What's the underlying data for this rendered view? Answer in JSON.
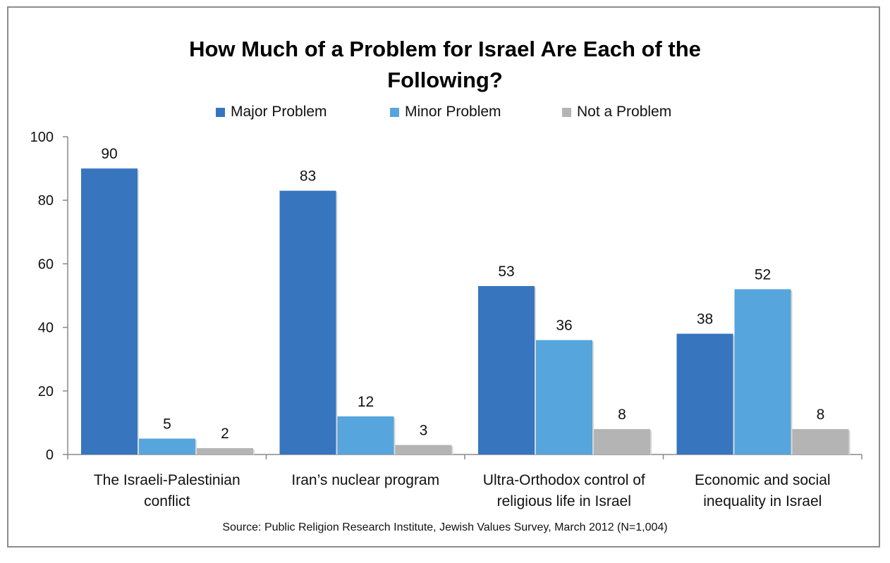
{
  "chart_data": {
    "type": "bar",
    "title_lines": [
      "How Much of a Problem for Israel Are Each of the",
      "Following?"
    ],
    "categories": [
      [
        "The Israeli-Palestinian",
        "conflict"
      ],
      [
        "Iran’s nuclear program"
      ],
      [
        "Ultra-Orthodox control of",
        "religious life in Israel"
      ],
      [
        "Economic and social",
        "inequality in Israel"
      ]
    ],
    "series": [
      {
        "name": "Major Problem",
        "color": "#3775bf",
        "values": [
          90,
          83,
          53,
          38
        ]
      },
      {
        "name": "Minor Problem",
        "color": "#56a5dc",
        "values": [
          5,
          12,
          36,
          52
        ]
      },
      {
        "name": "Not a Problem",
        "color": "#b4b4b4",
        "values": [
          2,
          3,
          8,
          8
        ]
      }
    ],
    "ylim": [
      0,
      100
    ],
    "yticks": [
      0,
      20,
      40,
      60,
      80,
      100
    ],
    "legend_position": "top",
    "grid": false,
    "source": "Source: Public Religion Research Institute, Jewish Values Survey, March 2012 (N=1,004)"
  }
}
